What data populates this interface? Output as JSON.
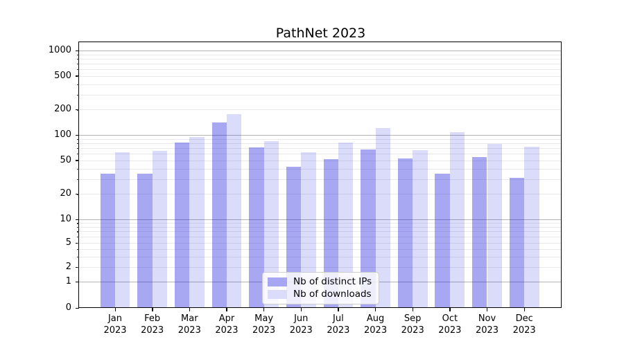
{
  "chart_data": {
    "type": "bar",
    "title": "PathNet 2023",
    "categories": [
      "Jan",
      "Feb",
      "Mar",
      "Apr",
      "May",
      "Jun",
      "Jul",
      "Aug",
      "Sep",
      "Oct",
      "Nov",
      "Dec"
    ],
    "year": "2023",
    "series": [
      {
        "name": "Nb of distinct IPs",
        "color": "#a6a6f2",
        "fill_rgba": "rgba(13,13,220,0.36)",
        "values": [
          35,
          35,
          81,
          140,
          71,
          42,
          52,
          67,
          53,
          35,
          55,
          31
        ]
      },
      {
        "name": "Nb of downloads",
        "color": "#dbdbfa",
        "fill_rgba": "rgba(13,13,220,0.15)",
        "values": [
          62,
          65,
          95,
          175,
          85,
          62,
          81,
          121,
          66,
          108,
          78,
          73
        ]
      }
    ],
    "xlabel": "",
    "ylabel": "",
    "yscale": "symlog",
    "ylim": [
      0,
      1250
    ],
    "yticks": [
      1000,
      500,
      200,
      100,
      50,
      20,
      10,
      5,
      2,
      1,
      0
    ],
    "grid": true,
    "legend_position": "lower center",
    "colors": {
      "major_grid": "#b4b4b4",
      "minor_grid": "#e9e9ed",
      "axis": "#000000",
      "background": "#ffffff"
    }
  }
}
